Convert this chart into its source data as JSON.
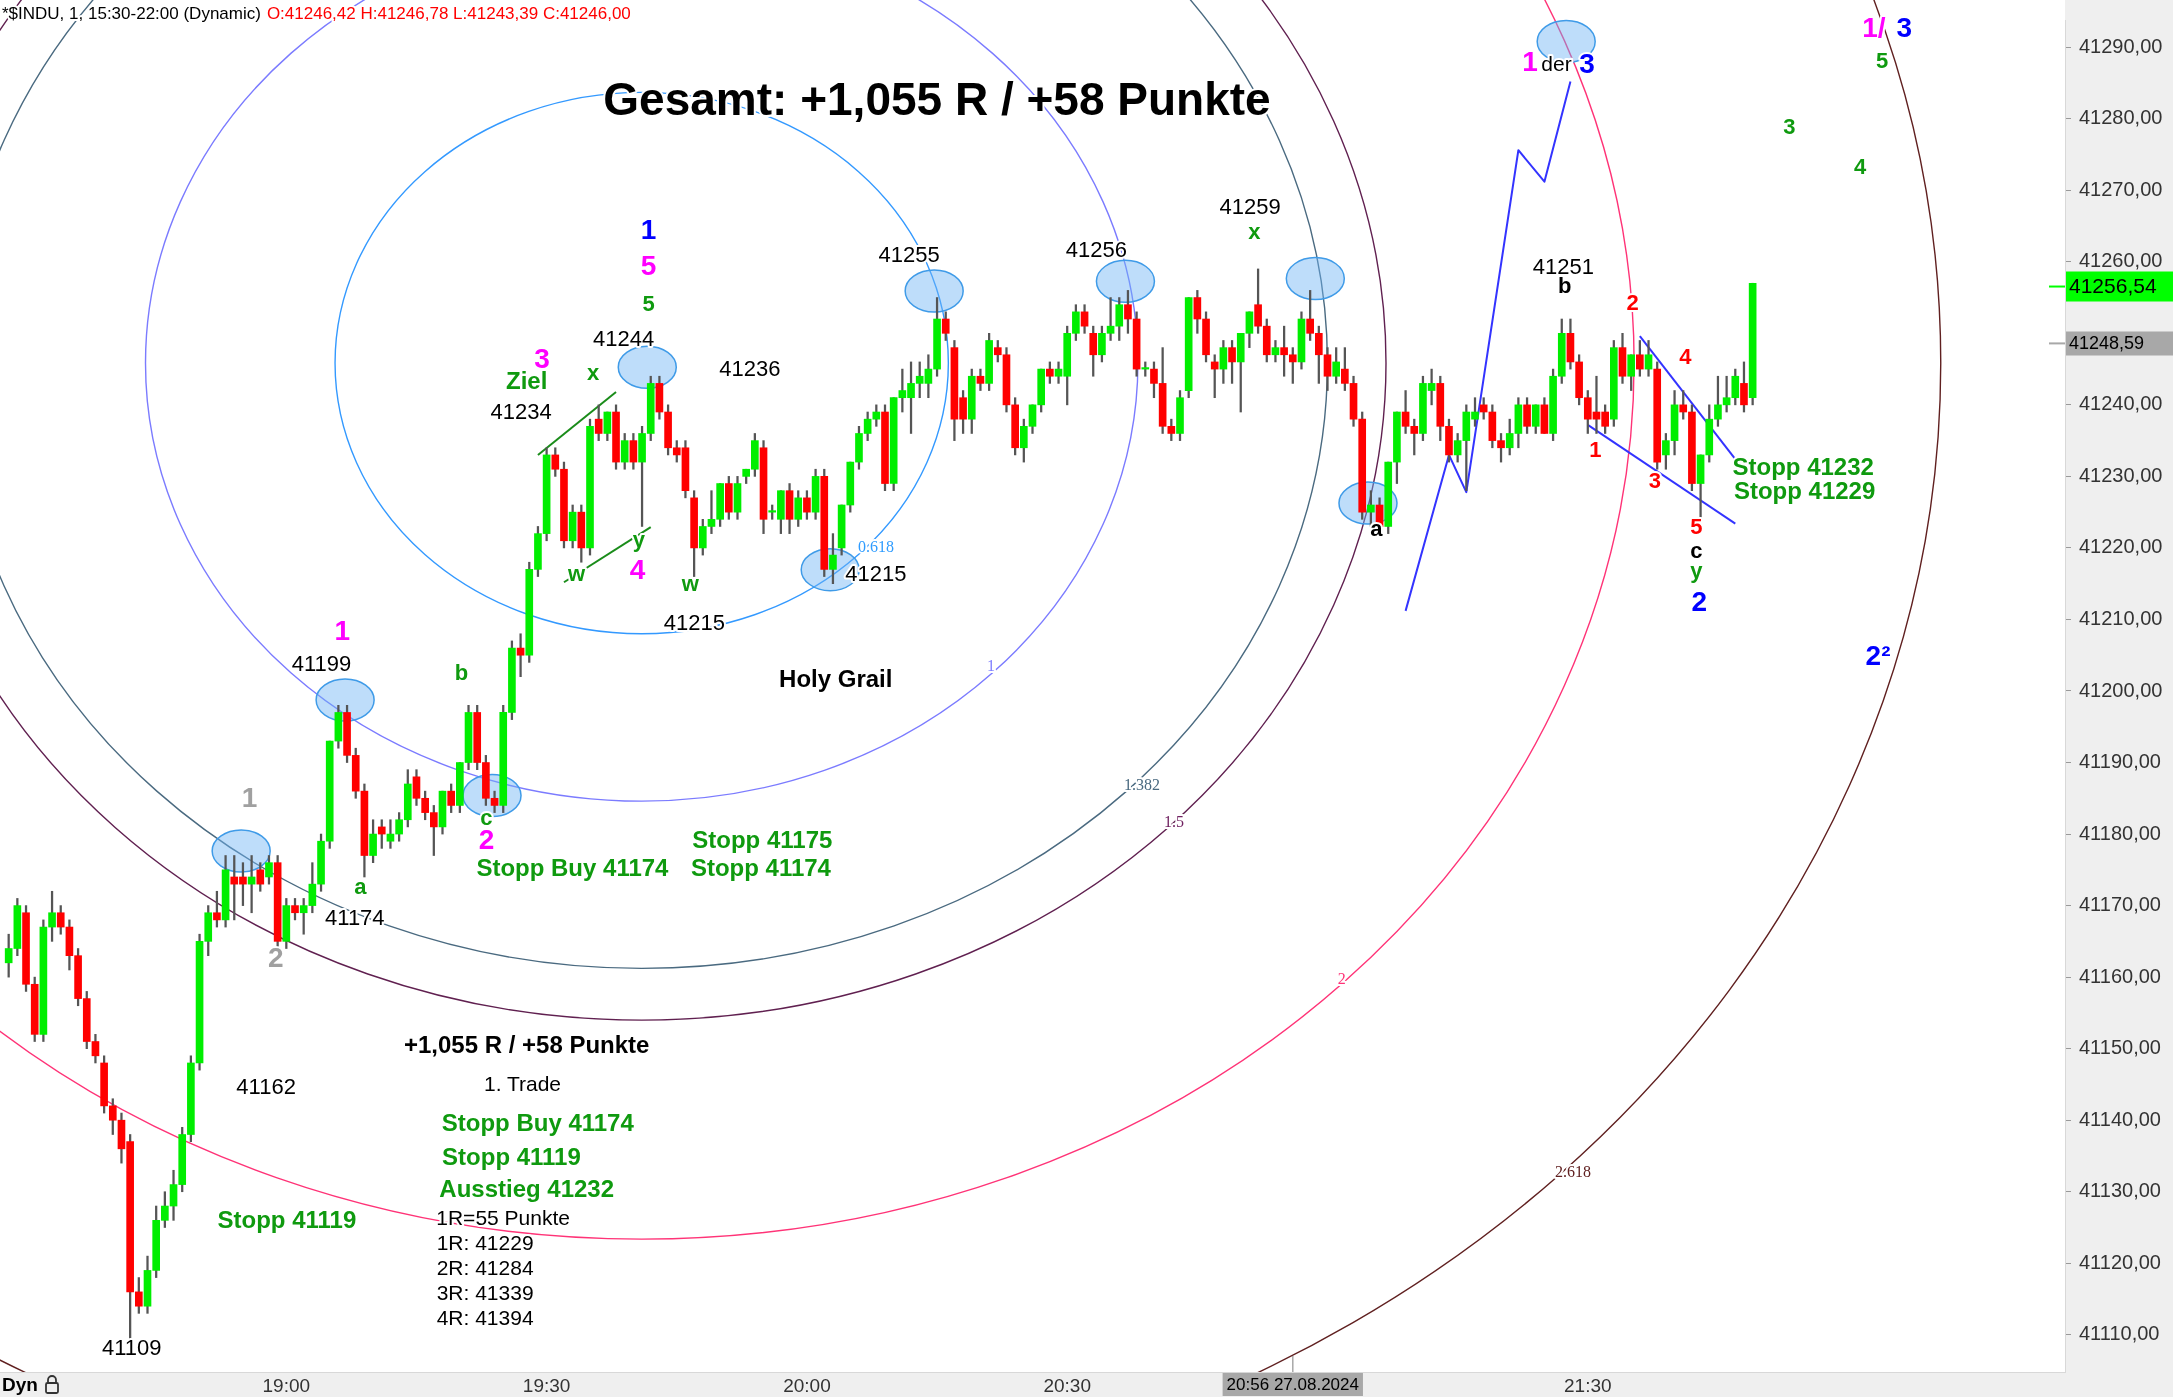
{
  "chart_data": {
    "type": "candlestick",
    "title": "Gesamt: +1,055 R / +58 Punkte",
    "subtitle": "*$INDU, 1, 15:30-22:00 (Dynamic)",
    "x": [
      "2024-08-27T18:28",
      "2024-08-27T18:29",
      "2024-08-27T18:30",
      "2024-08-27T18:31",
      "2024-08-27T18:32",
      "2024-08-27T18:33",
      "2024-08-27T18:34",
      "2024-08-27T18:35",
      "2024-08-27T18:36",
      "2024-08-27T18:37",
      "2024-08-27T18:38",
      "2024-08-27T18:39",
      "2024-08-27T18:40",
      "2024-08-27T18:41",
      "2024-08-27T18:42",
      "2024-08-27T18:43",
      "2024-08-27T18:44",
      "2024-08-27T18:45",
      "2024-08-27T18:46",
      "2024-08-27T18:47",
      "2024-08-27T18:48",
      "2024-08-27T18:49",
      "2024-08-27T18:50",
      "2024-08-27T18:51",
      "2024-08-27T18:52",
      "2024-08-27T18:53",
      "2024-08-27T18:54",
      "2024-08-27T18:55",
      "2024-08-27T18:56",
      "2024-08-27T18:57",
      "2024-08-27T18:58",
      "2024-08-27T18:59",
      "2024-08-27T19:00",
      "2024-08-27T19:01",
      "2024-08-27T19:02",
      "2024-08-27T19:03",
      "2024-08-27T19:04",
      "2024-08-27T19:05",
      "2024-08-27T19:06",
      "2024-08-27T19:07",
      "2024-08-27T19:08",
      "2024-08-27T19:09",
      "2024-08-27T19:10",
      "2024-08-27T19:11",
      "2024-08-27T19:12",
      "2024-08-27T19:13",
      "2024-08-27T19:14",
      "2024-08-27T19:15",
      "2024-08-27T19:16",
      "2024-08-27T19:17",
      "2024-08-27T19:18",
      "2024-08-27T19:19",
      "2024-08-27T19:20",
      "2024-08-27T19:21",
      "2024-08-27T19:22",
      "2024-08-27T19:23",
      "2024-08-27T19:24",
      "2024-08-27T19:25",
      "2024-08-27T19:26",
      "2024-08-27T19:27",
      "2024-08-27T19:28",
      "2024-08-27T19:29",
      "2024-08-27T19:30",
      "2024-08-27T19:31",
      "2024-08-27T19:32",
      "2024-08-27T19:33",
      "2024-08-27T19:34",
      "2024-08-27T19:35",
      "2024-08-27T19:36",
      "2024-08-27T19:37",
      "2024-08-27T19:38",
      "2024-08-27T19:39",
      "2024-08-27T19:40",
      "2024-08-27T19:41",
      "2024-08-27T19:42",
      "2024-08-27T19:43",
      "2024-08-27T19:44",
      "2024-08-27T19:45",
      "2024-08-27T19:46",
      "2024-08-27T19:47",
      "2024-08-27T19:48",
      "2024-08-27T19:49",
      "2024-08-27T19:50",
      "2024-08-27T19:51",
      "2024-08-27T19:52",
      "2024-08-27T19:53",
      "2024-08-27T19:54",
      "2024-08-27T19:55",
      "2024-08-27T19:56",
      "2024-08-27T19:57",
      "2024-08-27T19:58",
      "2024-08-27T19:59",
      "2024-08-27T20:00",
      "2024-08-27T20:01",
      "2024-08-27T20:02",
      "2024-08-27T20:03",
      "2024-08-27T20:04",
      "2024-08-27T20:05",
      "2024-08-27T20:06",
      "2024-08-27T20:07",
      "2024-08-27T20:08",
      "2024-08-27T20:09",
      "2024-08-27T20:10",
      "2024-08-27T20:11",
      "2024-08-27T20:12",
      "2024-08-27T20:13",
      "2024-08-27T20:14",
      "2024-08-27T20:15",
      "2024-08-27T20:16",
      "2024-08-27T20:17",
      "2024-08-27T20:18",
      "2024-08-27T20:19",
      "2024-08-27T20:20",
      "2024-08-27T20:21",
      "2024-08-27T20:22",
      "2024-08-27T20:23",
      "2024-08-27T20:24",
      "2024-08-27T20:25",
      "2024-08-27T20:26",
      "2024-08-27T20:27",
      "2024-08-27T20:28",
      "2024-08-27T20:29",
      "2024-08-27T20:30",
      "2024-08-27T20:31",
      "2024-08-27T20:32",
      "2024-08-27T20:33",
      "2024-08-27T20:34",
      "2024-08-27T20:35",
      "2024-08-27T20:36",
      "2024-08-27T20:37",
      "2024-08-27T20:38",
      "2024-08-27T20:39",
      "2024-08-27T20:40",
      "2024-08-27T20:41",
      "2024-08-27T20:42",
      "2024-08-27T20:43",
      "2024-08-27T20:44",
      "2024-08-27T20:45",
      "2024-08-27T20:46",
      "2024-08-27T20:47",
      "2024-08-27T20:48",
      "2024-08-27T20:49",
      "2024-08-27T20:50",
      "2024-08-27T20:51",
      "2024-08-27T20:52",
      "2024-08-27T20:53",
      "2024-08-27T20:54",
      "2024-08-27T20:55",
      "2024-08-27T20:56",
      "2024-08-27T20:57",
      "2024-08-27T20:58",
      "2024-08-27T20:59",
      "2024-08-27T21:00",
      "2024-08-27T21:01",
      "2024-08-27T21:02",
      "2024-08-27T21:03",
      "2024-08-27T21:04",
      "2024-08-27T21:05",
      "2024-08-27T21:06",
      "2024-08-27T21:07",
      "2024-08-27T21:08",
      "2024-08-27T21:09",
      "2024-08-27T21:10",
      "2024-08-27T21:11",
      "2024-08-27T21:12",
      "2024-08-27T21:13",
      "2024-08-27T21:14",
      "2024-08-27T21:15",
      "2024-08-27T21:16",
      "2024-08-27T21:17",
      "2024-08-27T21:18",
      "2024-08-27T21:19",
      "2024-08-27T21:20",
      "2024-08-27T21:21",
      "2024-08-27T21:22",
      "2024-08-27T21:23",
      "2024-08-27T21:24",
      "2024-08-27T21:25",
      "2024-08-27T21:26",
      "2024-08-27T21:27",
      "2024-08-27T21:28",
      "2024-08-27T21:29",
      "2024-08-27T21:30",
      "2024-08-27T21:31",
      "2024-08-27T21:32",
      "2024-08-27T21:33",
      "2024-08-27T21:34",
      "2024-08-27T21:35",
      "2024-08-27T21:36",
      "2024-08-27T21:37",
      "2024-08-27T21:38",
      "2024-08-27T21:39",
      "2024-08-27T21:40",
      "2024-08-27T21:41",
      "2024-08-27T21:42",
      "2024-08-27T21:43",
      "2024-08-27T21:44",
      "2024-08-27T21:45",
      "2024-08-27T21:46",
      "2024-08-27T21:47",
      "2024-08-27T21:48",
      "2024-08-27T21:49"
    ],
    "ohlc": [
      [
        41162,
        41166,
        41160,
        41164
      ],
      [
        41164,
        41171,
        41163,
        41170
      ],
      [
        41169,
        41170,
        41158,
        41159
      ],
      [
        41159,
        41160,
        41151,
        41152
      ],
      [
        41152,
        41168,
        41151,
        41167
      ],
      [
        41167,
        41172,
        41165,
        41169
      ],
      [
        41169,
        41170,
        41166,
        41167
      ],
      [
        41167,
        41168,
        41161,
        41163
      ],
      [
        41163,
        41164,
        41156,
        41157
      ],
      [
        41157,
        41158,
        41150,
        41151
      ],
      [
        41151,
        41152,
        41148,
        41149
      ],
      [
        41148,
        41149,
        41141,
        41142
      ],
      [
        41142,
        41143,
        41138,
        41140
      ],
      [
        41140,
        41141,
        41134,
        41136
      ],
      [
        41137,
        41138,
        41109,
        41116
      ],
      [
        41116,
        41118,
        41113,
        41114
      ],
      [
        41114,
        41121,
        41113,
        41119
      ],
      [
        41119,
        41128,
        41118,
        41126
      ],
      [
        41126,
        41130,
        41125,
        41128
      ],
      [
        41128,
        41133,
        41126,
        41131
      ],
      [
        41131,
        41139,
        41130,
        41138
      ],
      [
        41138,
        41149,
        41137,
        41148
      ],
      [
        41148,
        41166,
        41147,
        41165
      ],
      [
        41165,
        41170,
        41163,
        41169
      ],
      [
        41169,
        41172,
        41167,
        41168
      ],
      [
        41168,
        41177,
        41167,
        41175
      ],
      [
        41174,
        41177,
        41168,
        41173
      ],
      [
        41174,
        41176,
        41170,
        41173
      ],
      [
        41173,
        41177,
        41169,
        41174
      ],
      [
        41175,
        41176,
        41172,
        41173
      ],
      [
        41174,
        41177,
        41173,
        41176
      ],
      [
        41176,
        41177,
        41164,
        41165
      ],
      [
        41165,
        41171,
        41164,
        41170
      ],
      [
        41170,
        41171,
        41168,
        41169
      ],
      [
        41169,
        41171,
        41166,
        41170
      ],
      [
        41170,
        41176,
        41169,
        41173
      ],
      [
        41173,
        41180,
        41172,
        41179
      ],
      [
        41179,
        41193,
        41178,
        41193
      ],
      [
        41193,
        41198,
        41192,
        41197
      ],
      [
        41197,
        41198,
        41190,
        41191
      ],
      [
        41191,
        41192,
        41185,
        41186
      ],
      [
        41186,
        41187,
        41174,
        41177
      ],
      [
        41177,
        41182,
        41176,
        41180
      ],
      [
        41181,
        41182,
        41178,
        41180
      ],
      [
        41179,
        41182,
        41178,
        41180
      ],
      [
        41180,
        41183,
        41179,
        41182
      ],
      [
        41182,
        41189,
        41181,
        41187
      ],
      [
        41188,
        41189,
        41184,
        41185
      ],
      [
        41185,
        41186,
        41182,
        41183
      ],
      [
        41183,
        41184,
        41177,
        41181
      ],
      [
        41181,
        41186,
        41180,
        41186
      ],
      [
        41186,
        41187,
        41183,
        41184
      ],
      [
        41184,
        41190,
        41183,
        41190
      ],
      [
        41190,
        41198,
        41189,
        41197
      ],
      [
        41197,
        41198,
        41189,
        41190
      ],
      [
        41190,
        41191,
        41184,
        41185
      ],
      [
        41185,
        41186,
        41183,
        41184
      ],
      [
        41184,
        41198,
        41183,
        41197
      ],
      [
        41197,
        41207,
        41196,
        41206
      ],
      [
        41206,
        41208,
        41202,
        41205
      ],
      [
        41205,
        41218,
        41204,
        41217
      ],
      [
        41217,
        41223,
        41216,
        41222
      ],
      [
        41222,
        41234,
        41221,
        41233
      ],
      [
        41233,
        41234,
        41230,
        41231
      ],
      [
        41231,
        41232,
        41220,
        41221
      ],
      [
        41221,
        41226,
        41220,
        41225
      ],
      [
        41225,
        41226,
        41218,
        41220
      ],
      [
        41220,
        41238,
        41219,
        41237
      ],
      [
        41238,
        41240,
        41235,
        41236
      ],
      [
        41236,
        41239,
        41235,
        41239
      ],
      [
        41239,
        41240,
        41231,
        41232
      ],
      [
        41232,
        41236,
        41231,
        41235
      ],
      [
        41235,
        41236,
        41231,
        41232
      ],
      [
        41232,
        41237,
        41223,
        41236
      ],
      [
        41236,
        41244,
        41235,
        41243
      ],
      [
        41243,
        41244,
        41238,
        41239
      ],
      [
        41239,
        41240,
        41233,
        41234
      ],
      [
        41234,
        41235,
        41232,
        41233
      ],
      [
        41234,
        41235,
        41227,
        41228
      ],
      [
        41227,
        41228,
        41216,
        41220
      ],
      [
        41220,
        41224,
        41219,
        41223
      ],
      [
        41223,
        41228,
        41222,
        41224
      ],
      [
        41224,
        41229,
        41223,
        41229
      ],
      [
        41229,
        41230,
        41224,
        41225
      ],
      [
        41225,
        41230,
        41224,
        41229
      ],
      [
        41230,
        41231,
        41229,
        41231
      ],
      [
        41231,
        41236,
        41230,
        41235
      ],
      [
        41234,
        41235,
        41222,
        41224
      ],
      [
        41225,
        41226,
        41224,
        41225
      ],
      [
        41224,
        41228,
        41222,
        41228
      ],
      [
        41228,
        41229,
        41222,
        41224
      ],
      [
        41224,
        41228,
        41223,
        41227
      ],
      [
        41227,
        41228,
        41224,
        41225
      ],
      [
        41225,
        41231,
        41224,
        41230
      ],
      [
        41230,
        41231,
        41216,
        41217
      ],
      [
        41217,
        41222,
        41215,
        41219
      ],
      [
        41220,
        41226,
        41219,
        41226
      ],
      [
        41226,
        41232,
        41225,
        41232
      ],
      [
        41232,
        41237,
        41231,
        41236
      ],
      [
        41236,
        41239,
        41235,
        41238
      ],
      [
        41238,
        41240,
        41237,
        41239
      ],
      [
        41239,
        41240,
        41228,
        41229
      ],
      [
        41229,
        41241,
        41228,
        41241
      ],
      [
        41241,
        41245,
        41239,
        41242
      ],
      [
        41241,
        41246,
        41236,
        41243
      ],
      [
        41243,
        41246,
        41241,
        41244
      ],
      [
        41243,
        41247,
        41241,
        41245
      ],
      [
        41245,
        41255,
        41244,
        41252
      ],
      [
        41252,
        41253,
        41249,
        41250
      ],
      [
        41248,
        41249,
        41235,
        41238
      ],
      [
        41241,
        41242,
        41236,
        41238
      ],
      [
        41238,
        41245,
        41236,
        41244
      ],
      [
        41244,
        41245,
        41242,
        41243
      ],
      [
        41243,
        41250,
        41242,
        41249
      ],
      [
        41248,
        41249,
        41246,
        41247
      ],
      [
        41247,
        41248,
        41239,
        41240
      ],
      [
        41240,
        41241,
        41233,
        41234
      ],
      [
        41234,
        41238,
        41232,
        41237
      ],
      [
        41237,
        41240,
        41236,
        41240
      ],
      [
        41240,
        41245,
        41239,
        41245
      ],
      [
        41245,
        41246,
        41243,
        41244
      ],
      [
        41244,
        41246,
        41243,
        41245
      ],
      [
        41244,
        41251,
        41240,
        41250
      ],
      [
        41250,
        41254,
        41249,
        41253
      ],
      [
        41253,
        41254,
        41250,
        41251
      ],
      [
        41250,
        41251,
        41244,
        41247
      ],
      [
        41247,
        41251,
        41246,
        41250
      ],
      [
        41250,
        41255,
        41249,
        41251
      ],
      [
        41251,
        41255,
        41249,
        41254
      ],
      [
        41254,
        41256,
        41250,
        41252
      ],
      [
        41252,
        41253,
        41244,
        41245
      ],
      [
        41245,
        41246,
        41244,
        41245
      ],
      [
        41245,
        41246,
        41241,
        41243
      ],
      [
        41243,
        41248,
        41236,
        41237
      ],
      [
        41237,
        41238,
        41235,
        41236
      ],
      [
        41236,
        41242,
        41235,
        41241
      ],
      [
        41242,
        41255,
        41241,
        41255
      ],
      [
        41255,
        41256,
        41250,
        41252
      ],
      [
        41252,
        41253,
        41246,
        41247
      ],
      [
        41246,
        41247,
        41241,
        41245
      ],
      [
        41245,
        41249,
        41243,
        41248
      ],
      [
        41248,
        41249,
        41243,
        41246
      ],
      [
        41246,
        41250,
        41239,
        41250
      ],
      [
        41250,
        41253,
        41248,
        41253
      ],
      [
        41254,
        41259,
        41250,
        41251
      ],
      [
        41251,
        41252,
        41246,
        41247
      ],
      [
        41247,
        41249,
        41246,
        41248
      ],
      [
        41248,
        41251,
        41244,
        41247
      ],
      [
        41247,
        41248,
        41243,
        41246
      ],
      [
        41246,
        41253,
        41245,
        41252
      ],
      [
        41252,
        41256,
        41249,
        41250
      ],
      [
        41250,
        41251,
        41243,
        41247
      ],
      [
        41247,
        41248,
        41242,
        41244
      ],
      [
        41244,
        41248,
        41243,
        41246
      ],
      [
        41245,
        41248,
        41242,
        41243
      ],
      [
        41243,
        41244,
        41237,
        41238
      ],
      [
        41238,
        41239,
        41224,
        41225
      ],
      [
        41225,
        41228,
        41223,
        41226
      ],
      [
        41226,
        41227,
        41222,
        41223
      ],
      [
        41223,
        41232,
        41222,
        41232
      ],
      [
        41232,
        41239,
        41229,
        41239
      ],
      [
        41239,
        41242,
        41236,
        41237
      ],
      [
        41237,
        41238,
        41233,
        41236
      ],
      [
        41236,
        41244,
        41235,
        41243
      ],
      [
        41242,
        41245,
        41240,
        41243
      ],
      [
        41243,
        41244,
        41235,
        41237
      ],
      [
        41237,
        41238,
        41232,
        41233
      ],
      [
        41233,
        41236,
        41232,
        41235
      ],
      [
        41235,
        41240,
        41228,
        41239
      ],
      [
        41238,
        41241,
        41237,
        41239
      ],
      [
        41240,
        41241,
        41238,
        41239
      ],
      [
        41239,
        41240,
        41234,
        41235
      ],
      [
        41235,
        41236,
        41232,
        41234
      ],
      [
        41234,
        41238,
        41233,
        41236
      ],
      [
        41236,
        41241,
        41234,
        41240
      ],
      [
        41240,
        41241,
        41236,
        41237
      ],
      [
        41237,
        41240,
        41236,
        41240
      ],
      [
        41240,
        41241,
        41236,
        41236
      ],
      [
        41236,
        41245,
        41235,
        41244
      ],
      [
        41244,
        41252,
        41243,
        41250
      ],
      [
        41250,
        41252,
        41245,
        41246
      ],
      [
        41246,
        41247,
        41240,
        41241
      ],
      [
        41241,
        41242,
        41236,
        41238
      ],
      [
        41239,
        41244,
        41236,
        41238
      ],
      [
        41239,
        41240,
        41236,
        41237
      ],
      [
        41238,
        41249,
        41237,
        41248
      ],
      [
        41248,
        41250,
        41243,
        41244
      ],
      [
        41244,
        41247,
        41242,
        41247
      ],
      [
        41247,
        41249,
        41244,
        41245
      ],
      [
        41245,
        41249,
        41244,
        41247
      ],
      [
        41245,
        41246,
        41231,
        41232
      ],
      [
        41233,
        41236,
        41231,
        41235
      ],
      [
        41235,
        41242,
        41233,
        41240
      ],
      [
        41240,
        41242,
        41238,
        41239
      ],
      [
        41239,
        41240,
        41228,
        41229
      ],
      [
        41229,
        41233,
        41224,
        41233
      ],
      [
        41233,
        41240,
        41232,
        41238
      ],
      [
        41238,
        41244,
        41237,
        41240
      ],
      [
        41240,
        41244,
        41239,
        41241
      ],
      [
        41241,
        41245,
        41240,
        41244
      ],
      [
        41243,
        41246,
        41239,
        41240
      ],
      [
        41241,
        41257,
        41240,
        41257
      ]
    ],
    "series": [
      {
        "type": "line",
        "color": "#1a8c1a",
        "x": [
          "2024-08-27T19:29",
          "2024-08-27T19:38"
        ],
        "values": [
          41233,
          41241.8
        ]
      },
      {
        "type": "line",
        "color": "#1a8c1a",
        "x": [
          "2024-08-27T19:32",
          "2024-08-27T19:42"
        ],
        "values": [
          41215.2,
          41222.9
        ]
      },
      {
        "type": "line",
        "color": "#3333ff",
        "x": [
          "2024-08-27T21:36",
          "2024-08-27T21:47"
        ],
        "values": [
          41249.6,
          41232.4
        ]
      },
      {
        "type": "line",
        "color": "#3333ff",
        "x": [
          "2024-08-27T21:30",
          "2024-08-27T21:47"
        ],
        "values": [
          41237.2,
          41223.4
        ]
      },
      {
        "type": "line",
        "color": "#3333ff",
        "x": [
          "2024-08-27T21:09",
          "2024-08-27T21:14",
          "2024-08-27T21:16",
          "2024-08-27T21:22",
          "2024-08-27T21:25",
          "2024-08-27T21:28"
        ],
        "values": [
          41211.2,
          41233,
          41227.8,
          41275.6,
          41271.2,
          41285.2
        ]
      }
    ],
    "xlim": [
      "2024-08-27T18:27",
      "2024-08-27T22:25"
    ],
    "xticks": [
      {
        "value": "2024-08-27T19:00",
        "label": "19:00"
      },
      {
        "value": "2024-08-27T19:30",
        "label": "19:30"
      },
      {
        "value": "2024-08-27T20:00",
        "label": "20:00"
      },
      {
        "value": "2024-08-27T20:30",
        "label": "20:30"
      },
      {
        "value": "2024-08-27T21:30",
        "label": "21:30"
      }
    ],
    "ylim": [
      41104.8,
      41293.8
    ],
    "yticks": [
      {
        "value": 41110,
        "label": "41110,00"
      },
      {
        "value": 41120,
        "label": "41120,00"
      },
      {
        "value": 41130,
        "label": "41130,00"
      },
      {
        "value": 41140,
        "label": "41140,00"
      },
      {
        "value": 41150,
        "label": "41150,00"
      },
      {
        "value": 41160,
        "label": "41160,00"
      },
      {
        "value": 41170,
        "label": "41170,00"
      },
      {
        "value": 41180,
        "label": "41180,00"
      },
      {
        "value": 41190,
        "label": "41190,00"
      },
      {
        "value": 41200,
        "label": "41200,00"
      },
      {
        "value": 41210,
        "label": "41210,00"
      },
      {
        "value": 41220,
        "label": "41220,00"
      },
      {
        "value": 41230,
        "label": "41230,00"
      },
      {
        "value": 41240,
        "label": "41240,00"
      },
      {
        "value": 41250,
        "label": null
      },
      {
        "value": 41260,
        "label": "41260,00"
      },
      {
        "value": 41270,
        "label": "41270,00"
      },
      {
        "value": 41280,
        "label": "41280,00"
      },
      {
        "value": 41290,
        "label": "41290,00"
      }
    ],
    "ref_lines": [
      {
        "axis": "y",
        "value": 41256.54,
        "label": "41256,54",
        "color": "#00ff00"
      },
      {
        "axis": "y",
        "value": 41248.59,
        "label": "41248,59",
        "color": "#a8a8a8"
      },
      {
        "axis": "x",
        "value": "2024-08-27T20:56",
        "label": "20:56 27.08.2024",
        "color": "#a8a8a8"
      }
    ],
    "annotations": [
      "41199",
      "1",
      "1",
      "2",
      "41174",
      "a",
      "b",
      "c",
      "2",
      "41162",
      "41109",
      "3",
      "Ziel",
      "41234",
      "x",
      "41244",
      "5",
      "5",
      "1",
      "w",
      "y",
      "4",
      "w",
      "41215",
      "41236",
      "0.618",
      "41215",
      "41255",
      "41256",
      "41259",
      "x",
      "a",
      "41251",
      "b",
      "1",
      "2",
      "3",
      "4",
      "5",
      "c",
      "y",
      "2",
      "Stopp 41232",
      "Stopp 41229",
      "2²",
      "1/",
      "3",
      "5",
      "3",
      "4",
      "1",
      "der",
      "3",
      "Holy Grail",
      "Stopp 41175",
      "Stopp Buy 41174",
      "Stopp 41174",
      "+1,055 R / +58 Punkte",
      "1. Trade",
      "Stopp Buy 41174",
      "Stopp 41119",
      "Ausstieg 41232",
      "1R=55 Punkte",
      "1R: 41229",
      "2R: 41284",
      "3R: 41339",
      "4R: 41394",
      "Stopp 41119",
      "1",
      "1.382",
      "1.5",
      "2",
      "2.618",
      "O:41246,42 H:41246,78 L:41243,39 C:41246,00",
      "Dyn"
    ]
  }
}
